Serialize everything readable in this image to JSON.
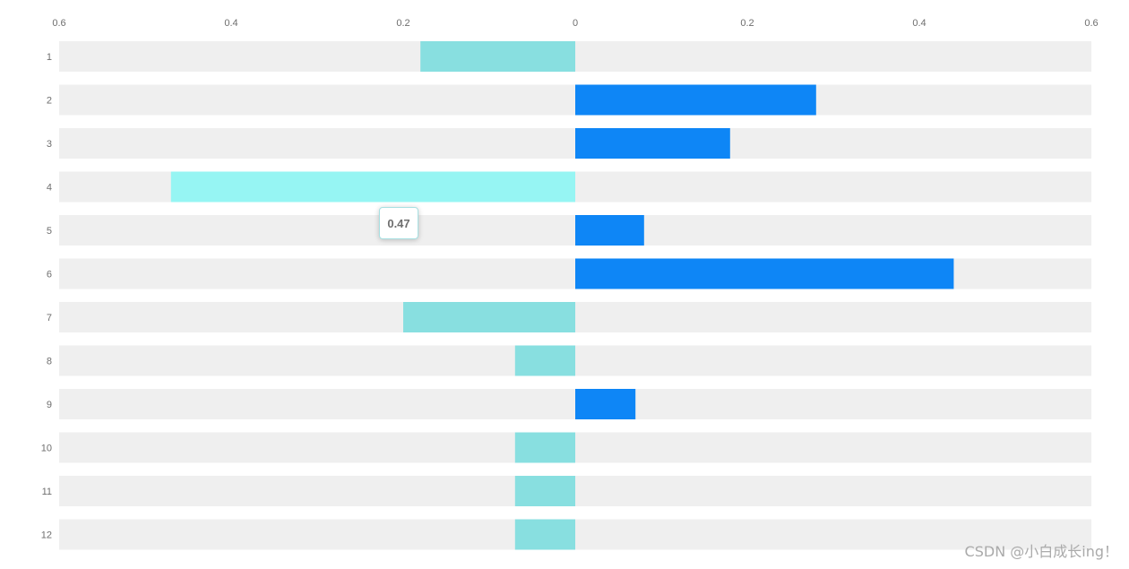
{
  "chart_data": {
    "type": "bar",
    "orientation": "horizontal",
    "categories": [
      "1",
      "2",
      "3",
      "4",
      "5",
      "6",
      "7",
      "8",
      "9",
      "10",
      "11",
      "12"
    ],
    "values": [
      -0.18,
      0.28,
      0.18,
      -0.47,
      0.08,
      0.44,
      -0.2,
      -0.07,
      0.07,
      -0.07,
      -0.07,
      -0.07
    ],
    "xlim": [
      -0.6,
      0.6
    ],
    "x_ticks": [
      -0.6,
      -0.4,
      -0.2,
      0,
      0.2,
      0.4,
      0.6
    ],
    "x_tick_labels": [
      "0.6",
      "0.4",
      "0.2",
      "0",
      "0.2",
      "0.4",
      "0.6"
    ],
    "x_axis_position": "top",
    "background_bars": true,
    "grid": false,
    "legend": "none",
    "highlighted_category": "4",
    "title": "",
    "xlabel": "",
    "ylabel": ""
  },
  "colors": {
    "positive": "#0e86f6",
    "negative": "#88dfe0",
    "negative_highlight": "#96f5f3",
    "background_bar": "#efefef",
    "tick_text": "#6e6e6e"
  },
  "tooltip": {
    "value": "0.47"
  },
  "watermark": {
    "text": "CSDN @小白成长ing！"
  }
}
